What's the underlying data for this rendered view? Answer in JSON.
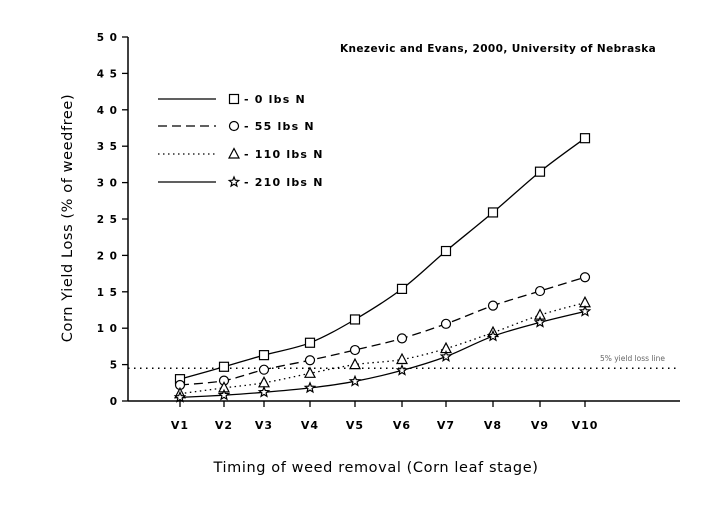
{
  "chart_data": {
    "type": "line",
    "title": "",
    "source_note": "Knezevic and Evans, 2000, University of Nebraska",
    "xlabel": "Timing of weed removal (Corn leaf stage)",
    "ylabel": "Corn Yield Loss (% of weedfree)",
    "categories": [
      "V1",
      "V2",
      "V3",
      "V4",
      "V5",
      "V6",
      "V7",
      "V8",
      "V9",
      "V10"
    ],
    "ylim": [
      0,
      50
    ],
    "yticks": [
      0,
      5,
      10,
      15,
      20,
      25,
      30,
      35,
      40,
      45,
      50
    ],
    "ytick_labels": [
      "0",
      "5",
      "1 0",
      "1 5",
      "2 0",
      "2 5",
      "3 0",
      "3 5",
      "4 0",
      "4 5",
      "5 0"
    ],
    "legend_position": "top-left",
    "grid": false,
    "series": [
      {
        "name": "- 0 lbs N",
        "marker": "square",
        "line_style": "solid",
        "values": [
          3.0,
          4.7,
          6.3,
          8.0,
          11.2,
          15.4,
          20.6,
          25.9,
          31.5,
          36.1
        ]
      },
      {
        "name": "- 55 lbs N",
        "marker": "circle",
        "line_style": "dashed",
        "values": [
          2.2,
          2.8,
          4.3,
          5.6,
          7.0,
          8.6,
          10.6,
          13.1,
          15.1,
          17.0
        ]
      },
      {
        "name": "- 110 lbs N",
        "marker": "triangle",
        "line_style": "dotted",
        "values": [
          1.0,
          1.8,
          2.5,
          3.8,
          5.0,
          5.7,
          7.2,
          9.4,
          11.8,
          13.5
        ]
      },
      {
        "name": "- 210 lbs N",
        "marker": "star",
        "line_style": "solid",
        "values": [
          0.5,
          0.8,
          1.2,
          1.8,
          2.7,
          4.2,
          6.1,
          8.9,
          10.8,
          12.3
        ]
      }
    ],
    "reference_line": {
      "y": 4.5,
      "label": "5% yield loss line",
      "style": "dotted"
    }
  }
}
